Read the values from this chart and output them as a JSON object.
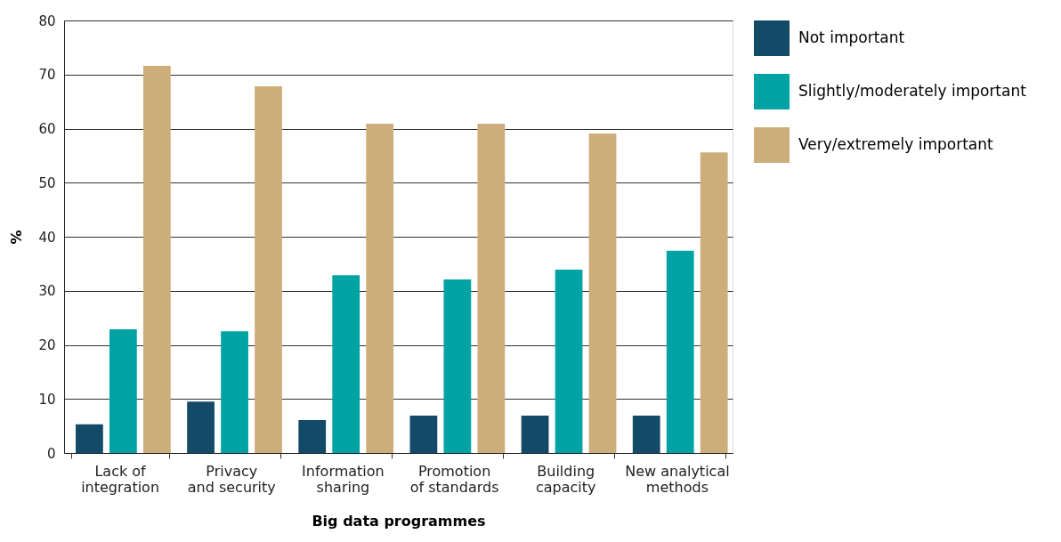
{
  "chart_data": {
    "type": "bar",
    "xlabel": "Big data programmes",
    "ylabel": "%",
    "categories": [
      "Lack of\nintegration",
      "Privacy\nand security",
      "Information\nsharing",
      "Promotion\nof standards",
      "Building\ncapacity",
      "New analytical\nmethods"
    ],
    "series": [
      {
        "name": "Not important",
        "color": "#134a68",
        "values": [
          5.3,
          9.5,
          6.1,
          6.9,
          6.9,
          6.9
        ]
      },
      {
        "name": "Slightly/moderately important",
        "color": "#00a3a4",
        "values": [
          22.9,
          22.5,
          32.9,
          32.1,
          33.9,
          37.4
        ]
      },
      {
        "name": "Very/extremely important",
        "color": "#cdad7a",
        "values": [
          71.6,
          67.8,
          60.9,
          60.9,
          59.1,
          55.6
        ]
      }
    ],
    "ylim": [
      0,
      80
    ],
    "yticks": [
      0,
      10,
      20,
      30,
      40,
      50,
      60,
      70,
      80
    ],
    "grid": "y",
    "legend": "top right"
  }
}
